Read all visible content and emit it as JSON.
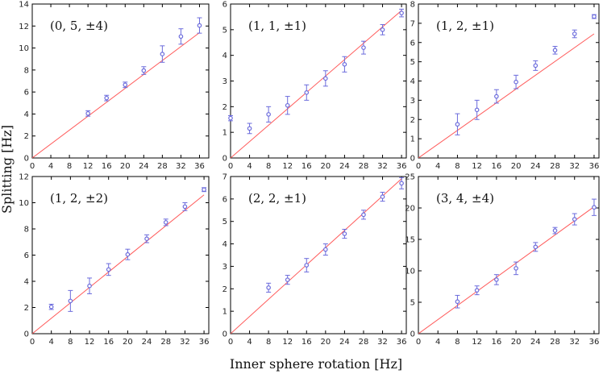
{
  "figure": {
    "ylabel": "Splitting [Hz]",
    "xlabel": "Inner sphere rotation [Hz]"
  },
  "colors": {
    "fit_line": "#ff5a5a",
    "points": "#6b6bdc",
    "axes": "#000000"
  },
  "chart_data": [
    {
      "type": "scatter",
      "title": "(0, 5, ±4)",
      "xlim": [
        0,
        38
      ],
      "ylim": [
        0,
        14
      ],
      "xticks": [
        0,
        4,
        8,
        12,
        16,
        20,
        24,
        28,
        32,
        36
      ],
      "yticks": [
        0,
        2,
        4,
        6,
        8,
        10,
        12,
        14
      ],
      "fit": {
        "x": [
          0,
          36
        ],
        "y": [
          0,
          11.4
        ]
      },
      "x": [
        12,
        16,
        20,
        24,
        28,
        32,
        36
      ],
      "y": [
        4.05,
        5.45,
        6.65,
        7.95,
        9.45,
        11.05,
        12.05
      ],
      "err": [
        0.25,
        0.25,
        0.25,
        0.35,
        0.75,
        0.7,
        0.7
      ]
    },
    {
      "type": "scatter",
      "title": "(1, 1, ±1)",
      "xlim": [
        0,
        37
      ],
      "ylim": [
        0,
        6
      ],
      "xticks": [
        0,
        4,
        8,
        12,
        16,
        20,
        24,
        28,
        32,
        36
      ],
      "yticks": [
        0,
        1,
        2,
        3,
        4,
        5,
        6
      ],
      "fit": {
        "x": [
          0,
          36
        ],
        "y": [
          0,
          5.75
        ]
      },
      "x": [
        0,
        4,
        8,
        12,
        16,
        20,
        24,
        28,
        32,
        36
      ],
      "y": [
        1.55,
        1.15,
        1.7,
        2.05,
        2.55,
        3.1,
        3.65,
        4.3,
        5.0,
        5.65
      ],
      "err": [
        0.1,
        0.2,
        0.3,
        0.35,
        0.3,
        0.3,
        0.3,
        0.25,
        0.2,
        0.15
      ]
    },
    {
      "type": "scatter",
      "title": "(1, 2, ±1)",
      "xlim": [
        0,
        37
      ],
      "ylim": [
        0,
        8
      ],
      "xticks": [
        0,
        4,
        8,
        12,
        16,
        20,
        24,
        28,
        32,
        36
      ],
      "yticks": [
        0,
        1,
        2,
        3,
        4,
        5,
        6,
        7,
        8
      ],
      "fit": {
        "x": [
          0,
          36
        ],
        "y": [
          0,
          6.45
        ]
      },
      "x": [
        8,
        12,
        16,
        20,
        24,
        28,
        32,
        36
      ],
      "y": [
        1.75,
        2.5,
        3.2,
        3.95,
        4.8,
        5.6,
        6.45,
        7.35
      ],
      "err": [
        0.55,
        0.5,
        0.35,
        0.35,
        0.25,
        0.2,
        0.2,
        0.1
      ]
    },
    {
      "type": "scatter",
      "title": "(1, 2, ±2)",
      "xlim": [
        0,
        37
      ],
      "ylim": [
        0,
        12
      ],
      "xticks": [
        0,
        4,
        8,
        12,
        16,
        20,
        24,
        28,
        32,
        36
      ],
      "yticks": [
        0,
        2,
        4,
        6,
        8,
        10,
        12
      ],
      "fit": {
        "x": [
          0,
          36
        ],
        "y": [
          0,
          10.6
        ]
      },
      "x": [
        4,
        8,
        12,
        16,
        20,
        24,
        28,
        32,
        36
      ],
      "y": [
        2.05,
        2.5,
        3.65,
        4.9,
        6.05,
        7.25,
        8.5,
        9.7,
        11.0
      ],
      "err": [
        0.2,
        0.8,
        0.6,
        0.45,
        0.4,
        0.3,
        0.25,
        0.3,
        0.15
      ]
    },
    {
      "type": "scatter",
      "title": "(2, 2, ±1)",
      "xlim": [
        0,
        37
      ],
      "ylim": [
        0,
        7
      ],
      "xticks": [
        0,
        4,
        8,
        12,
        16,
        20,
        24,
        28,
        32,
        36
      ],
      "yticks": [
        0,
        1,
        2,
        3,
        4,
        5,
        6,
        7
      ],
      "fit": {
        "x": [
          0,
          36
        ],
        "y": [
          0,
          6.9
        ]
      },
      "x": [
        8,
        12,
        16,
        20,
        24,
        28,
        32,
        36
      ],
      "y": [
        2.05,
        2.4,
        3.05,
        3.75,
        4.45,
        5.3,
        6.1,
        6.7
      ],
      "err": [
        0.2,
        0.2,
        0.3,
        0.25,
        0.2,
        0.2,
        0.2,
        0.25
      ]
    },
    {
      "type": "scatter",
      "title": "(3, 4, ±4)",
      "xlim": [
        0,
        37
      ],
      "ylim": [
        0,
        25
      ],
      "xticks": [
        0,
        4,
        8,
        12,
        16,
        20,
        24,
        28,
        32,
        36
      ],
      "yticks": [
        0,
        5,
        10,
        15,
        20,
        25
      ],
      "fit": {
        "x": [
          0,
          36
        ],
        "y": [
          0,
          20.2
        ]
      },
      "x": [
        8,
        12,
        16,
        20,
        24,
        28,
        32,
        36
      ],
      "y": [
        5.1,
        6.9,
        8.6,
        10.4,
        13.8,
        16.4,
        18.2,
        20.1
      ],
      "err": [
        1.0,
        0.7,
        0.8,
        1.0,
        0.7,
        0.5,
        0.9,
        1.3
      ]
    }
  ]
}
